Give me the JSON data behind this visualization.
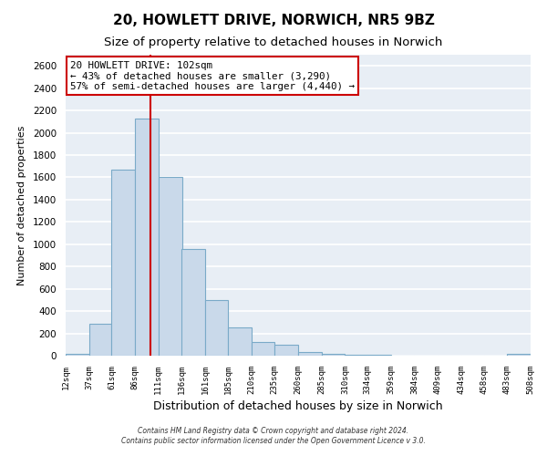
{
  "title": "20, HOWLETT DRIVE, NORWICH, NR5 9BZ",
  "subtitle": "Size of property relative to detached houses in Norwich",
  "xlabel": "Distribution of detached houses by size in Norwich",
  "ylabel": "Number of detached properties",
  "bin_edges": [
    12,
    37,
    61,
    86,
    111,
    136,
    161,
    185,
    210,
    235,
    260,
    285,
    310,
    334,
    359,
    384,
    409,
    434,
    458,
    483,
    508
  ],
  "bin_values": [
    20,
    290,
    1670,
    2130,
    1600,
    960,
    500,
    250,
    120,
    95,
    30,
    15,
    5,
    5,
    3,
    2,
    2,
    2,
    2,
    20
  ],
  "bar_facecolor": "#c9d9ea",
  "bar_edgecolor": "#7aaac8",
  "vline_x": 102,
  "vline_color": "#cc0000",
  "ylim": [
    0,
    2700
  ],
  "yticks": [
    0,
    200,
    400,
    600,
    800,
    1000,
    1200,
    1400,
    1600,
    1800,
    2000,
    2200,
    2400,
    2600
  ],
  "annotation_title": "20 HOWLETT DRIVE: 102sqm",
  "annotation_line1": "← 43% of detached houses are smaller (3,290)",
  "annotation_line2": "57% of semi-detached houses are larger (4,440) →",
  "annotation_box_facecolor": "white",
  "annotation_box_edgecolor": "#cc0000",
  "footer1": "Contains HM Land Registry data © Crown copyright and database right 2024.",
  "footer2": "Contains public sector information licensed under the Open Government Licence v 3.0.",
  "background_color": "#ffffff",
  "plot_background": "#e8eef5",
  "grid_color": "#ffffff",
  "title_fontsize": 11,
  "subtitle_fontsize": 9.5,
  "tick_labels": [
    "12sqm",
    "37sqm",
    "61sqm",
    "86sqm",
    "111sqm",
    "136sqm",
    "161sqm",
    "185sqm",
    "210sqm",
    "235sqm",
    "260sqm",
    "285sqm",
    "310sqm",
    "334sqm",
    "359sqm",
    "384sqm",
    "409sqm",
    "434sqm",
    "458sqm",
    "483sqm",
    "508sqm"
  ]
}
